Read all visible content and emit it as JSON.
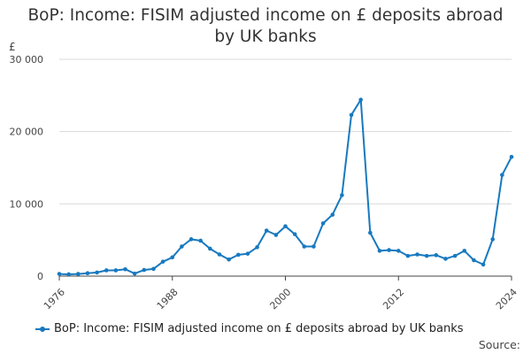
{
  "chart_data": {
    "type": "line",
    "title": "BoP: Income: FISIM adjusted income on £ deposits abroad by UK banks",
    "title_lines": [
      "BoP: Income: FISIM adjusted income on £ deposits abroad",
      "by UK banks"
    ],
    "ylabel": "£",
    "xlabel": "",
    "ylim": [
      0,
      30000
    ],
    "xlim": [
      1976,
      2024
    ],
    "y_ticks": [
      0,
      10000,
      20000,
      30000
    ],
    "y_tick_labels": [
      "0",
      "10 000",
      "20 000",
      "30 000"
    ],
    "x_ticks": [
      1976,
      1988,
      2000,
      2012,
      2024
    ],
    "x_tick_labels": [
      "1976",
      "1988",
      "2000",
      "2012",
      "2024"
    ],
    "grid": "horizontal",
    "legend_position": "bottom",
    "series": [
      {
        "name": "BoP: Income: FISIM adjusted income on £ deposits abroad by UK banks",
        "color": "#1879bf",
        "x": [
          1976,
          1977,
          1978,
          1979,
          1980,
          1981,
          1982,
          1983,
          1984,
          1985,
          1986,
          1987,
          1988,
          1989,
          1990,
          1991,
          1992,
          1993,
          1994,
          1995,
          1996,
          1997,
          1998,
          1999,
          2000,
          2001,
          2002,
          2003,
          2004,
          2005,
          2006,
          2007,
          2008,
          2009,
          2010,
          2011,
          2012,
          2013,
          2014,
          2015,
          2016,
          2017,
          2018,
          2019,
          2020,
          2021,
          2022,
          2023,
          2024
        ],
        "values": [
          300,
          250,
          300,
          400,
          500,
          800,
          800,
          950,
          350,
          850,
          1000,
          2000,
          2600,
          4100,
          5100,
          4900,
          3800,
          3000,
          2300,
          2950,
          3100,
          4000,
          6300,
          5700,
          6900,
          5800,
          4100,
          4100,
          7300,
          8500,
          11200,
          22300,
          24400,
          6000,
          3500,
          3600,
          3500,
          2800,
          3000,
          2800,
          2900,
          2400,
          2800,
          3500,
          2200,
          1600,
          5100,
          14000,
          16500
        ]
      }
    ],
    "source_label": "Source:"
  }
}
